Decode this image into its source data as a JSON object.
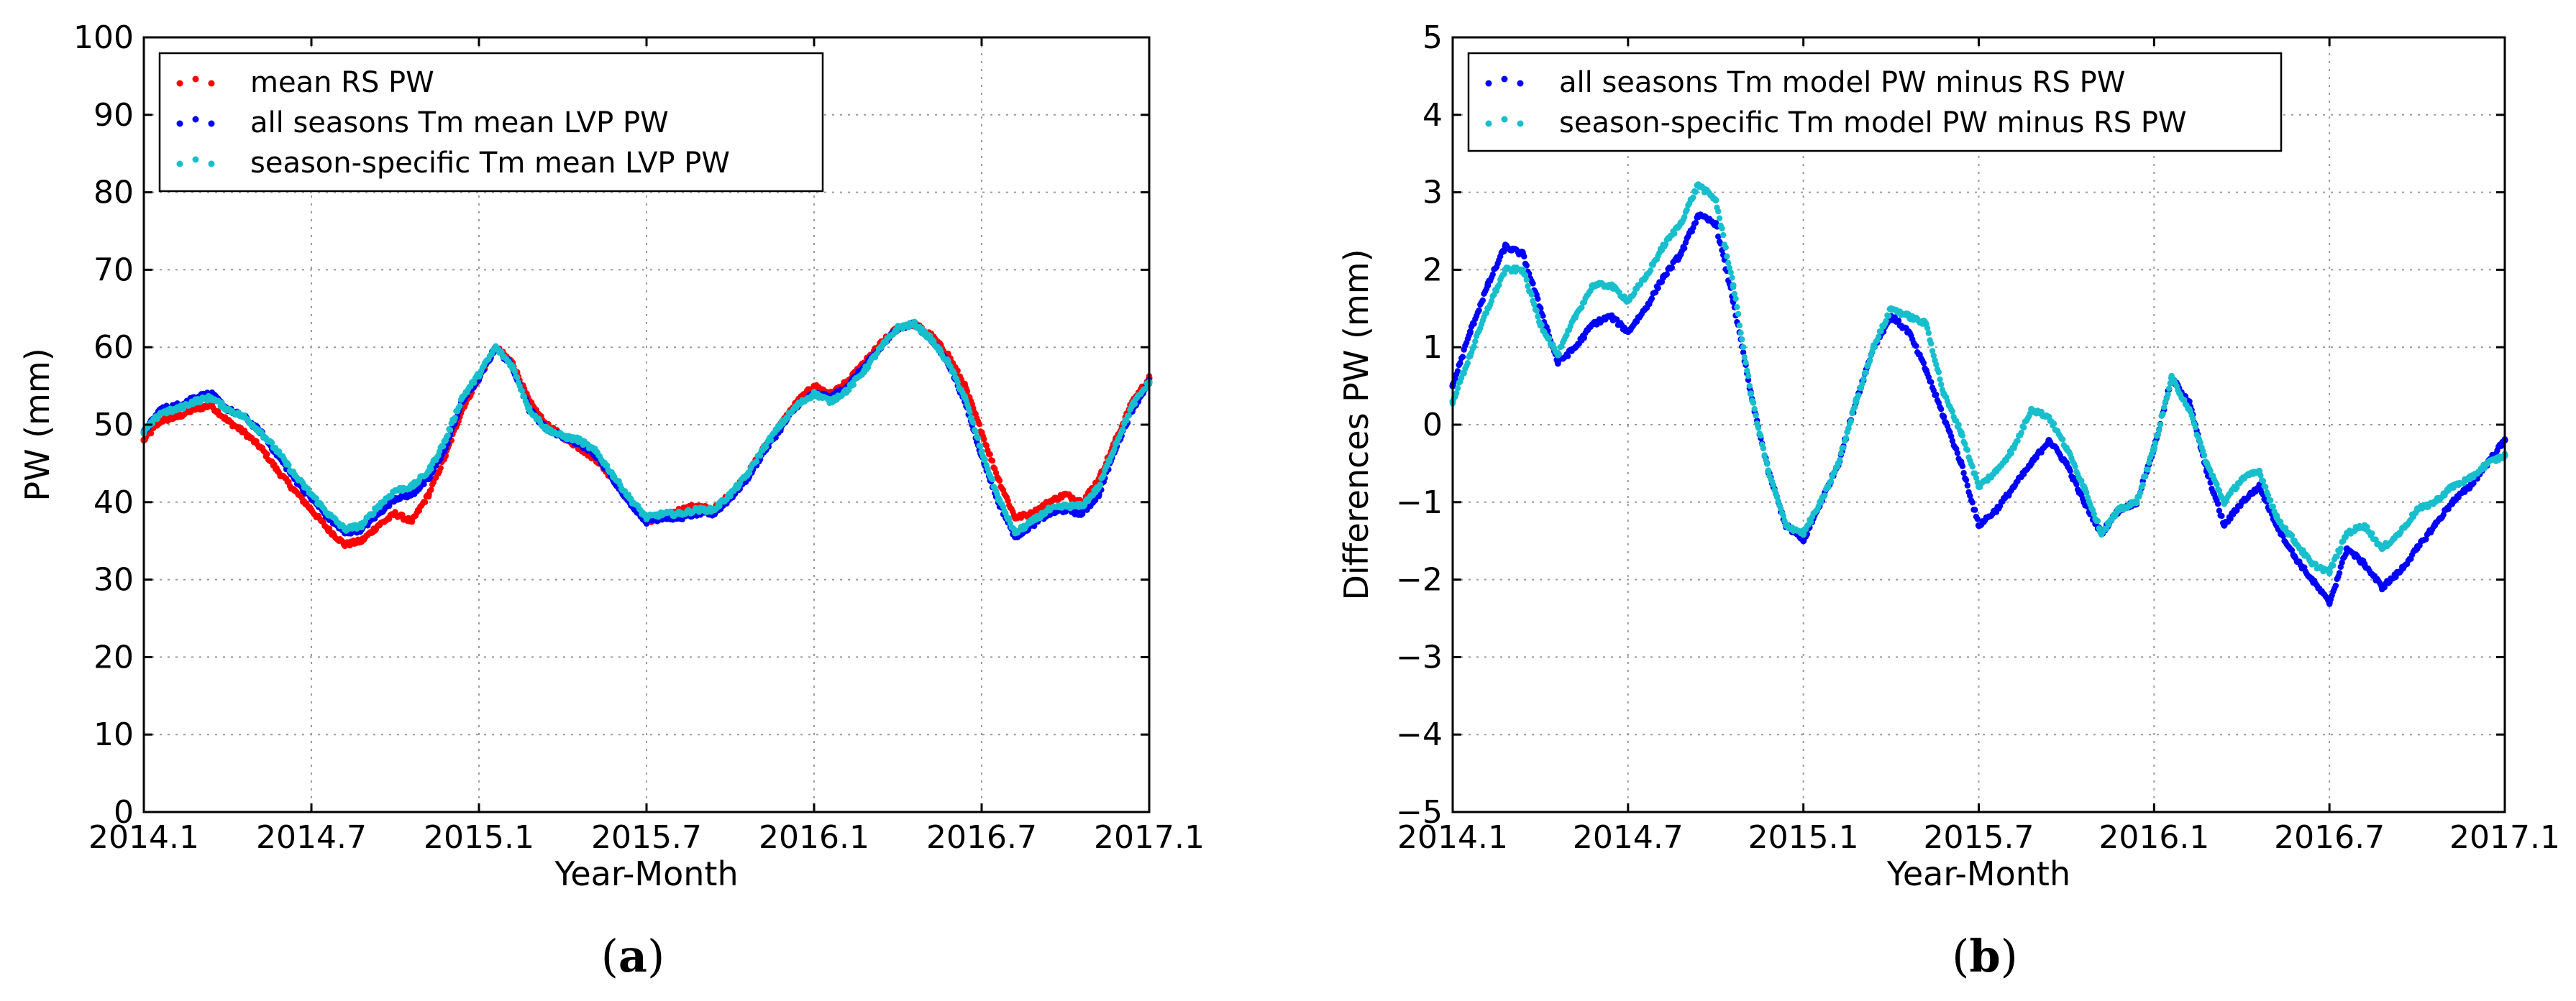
{
  "chart_data": [
    {
      "type": "line",
      "title": "",
      "caption_letter": "a",
      "xlabel": "Year-Month",
      "ylabel": "PW (mm)",
      "xlim": [
        2014.0,
        2017.0
      ],
      "ylim": [
        0,
        100
      ],
      "x_ticks": [
        2014.0,
        2014.5,
        2015.0,
        2015.5,
        2016.0,
        2016.5,
        2017.0
      ],
      "x_tick_labels": [
        "2014.1",
        "2014.7",
        "2015.1",
        "2015.7",
        "2016.1",
        "2016.7",
        "2017.1"
      ],
      "y_ticks": [
        0,
        10,
        20,
        30,
        40,
        50,
        60,
        70,
        80,
        90,
        100
      ],
      "y_tick_labels": [
        "0",
        "10",
        "20",
        "30",
        "40",
        "50",
        "60",
        "70",
        "80",
        "90",
        "100"
      ],
      "grid": true,
      "legend_position": "top-left",
      "series": [
        {
          "name": "mean RS PW",
          "color": "#ff0000",
          "x": [
            2014.0,
            2014.05,
            2014.1,
            2014.15,
            2014.2,
            2014.25,
            2014.3,
            2014.35,
            2014.4,
            2014.45,
            2014.5,
            2014.55,
            2014.6,
            2014.65,
            2014.7,
            2014.75,
            2014.8,
            2014.85,
            2014.9,
            2014.95,
            2015.0,
            2015.05,
            2015.1,
            2015.15,
            2015.2,
            2015.25,
            2015.3,
            2015.35,
            2015.4,
            2015.45,
            2015.5,
            2015.55,
            2015.6,
            2015.65,
            2015.7,
            2015.75,
            2015.8,
            2015.85,
            2015.9,
            2015.95,
            2016.0,
            2016.05,
            2016.1,
            2016.15,
            2016.2,
            2016.25,
            2016.3,
            2016.35,
            2016.4,
            2016.45,
            2016.5,
            2016.55,
            2016.6,
            2016.65,
            2016.7,
            2016.75,
            2016.8,
            2016.85,
            2016.9,
            2016.95,
            2017.0
          ],
          "y": [
            48,
            50.5,
            51,
            52,
            52.5,
            50.5,
            49,
            47,
            44,
            41.5,
            39,
            36.5,
            34.5,
            35,
            37,
            38.5,
            37.5,
            41,
            46,
            52,
            56,
            60,
            58,
            53,
            50,
            48.5,
            47,
            45.5,
            43,
            40,
            37.5,
            38,
            39,
            39.5,
            39,
            41,
            43.5,
            47,
            50,
            53,
            55,
            54,
            55.5,
            58,
            60.5,
            62.5,
            63,
            61.5,
            59,
            55,
            49,
            43,
            38,
            38.5,
            40,
            41,
            40,
            43,
            48,
            53,
            56
          ]
        },
        {
          "name": "all seasons Tm mean LVP PW",
          "color": "#0000ff",
          "x": [
            2014.0,
            2014.05,
            2014.1,
            2014.15,
            2014.2,
            2014.25,
            2014.3,
            2014.35,
            2014.4,
            2014.45,
            2014.5,
            2014.55,
            2014.6,
            2014.65,
            2014.7,
            2014.75,
            2014.8,
            2014.85,
            2014.9,
            2014.95,
            2015.0,
            2015.05,
            2015.1,
            2015.15,
            2015.2,
            2015.25,
            2015.3,
            2015.35,
            2015.4,
            2015.45,
            2015.5,
            2015.55,
            2015.6,
            2015.65,
            2015.7,
            2015.75,
            2015.8,
            2015.85,
            2015.9,
            2015.95,
            2016.0,
            2016.05,
            2016.1,
            2016.15,
            2016.2,
            2016.25,
            2016.3,
            2016.35,
            2016.4,
            2016.45,
            2016.5,
            2016.55,
            2016.6,
            2016.65,
            2016.7,
            2016.75,
            2016.8,
            2016.85,
            2016.9,
            2016.95,
            2017.0
          ],
          "y": [
            49,
            52,
            52.5,
            53.5,
            54,
            52,
            51,
            49,
            46,
            43,
            40.5,
            38,
            36,
            36.5,
            38.5,
            40.5,
            41,
            43,
            47,
            53,
            56,
            60,
            57.5,
            52,
            49.5,
            48.5,
            47.5,
            46,
            43,
            40,
            37.5,
            38,
            38,
            38.5,
            38.5,
            40.5,
            43,
            46.5,
            49.5,
            52.5,
            54,
            53.5,
            55,
            57.5,
            60,
            62.5,
            63,
            61,
            58,
            53,
            46,
            40,
            35.5,
            37,
            38.5,
            39,
            38.5,
            41,
            47,
            52,
            55.5
          ]
        },
        {
          "name": "season-specific Tm mean LVP PW",
          "color": "#17bfcc",
          "x": [
            2014.0,
            2014.05,
            2014.1,
            2014.15,
            2014.2,
            2014.25,
            2014.3,
            2014.35,
            2014.4,
            2014.45,
            2014.5,
            2014.55,
            2014.6,
            2014.65,
            2014.7,
            2014.75,
            2014.8,
            2014.85,
            2014.9,
            2014.95,
            2015.0,
            2015.05,
            2015.1,
            2015.15,
            2015.2,
            2015.25,
            2015.3,
            2015.35,
            2015.4,
            2015.45,
            2015.5,
            2015.55,
            2015.6,
            2015.65,
            2015.7,
            2015.75,
            2015.8,
            2015.85,
            2015.9,
            2015.95,
            2016.0,
            2016.05,
            2016.1,
            2016.15,
            2016.2,
            2016.25,
            2016.3,
            2016.35,
            2016.4,
            2016.45,
            2016.5,
            2016.55,
            2016.6,
            2016.65,
            2016.7,
            2016.75,
            2016.8,
            2016.85,
            2016.9,
            2016.95,
            2017.0
          ],
          "y": [
            49,
            51.5,
            52,
            53,
            53.5,
            52,
            51,
            49,
            46.5,
            43.5,
            41,
            38.5,
            36.5,
            37,
            39.5,
            41.5,
            42,
            44,
            48,
            53.5,
            56.5,
            60,
            57.5,
            52,
            49.5,
            48.5,
            48,
            46.5,
            43.5,
            40.5,
            38,
            38.5,
            38.5,
            39,
            39,
            41,
            43.5,
            47,
            50,
            52.5,
            54,
            53,
            54.5,
            57,
            60,
            62.5,
            63,
            61,
            58,
            53.5,
            46.5,
            40.5,
            36,
            37.5,
            39,
            39.5,
            39.5,
            42,
            47.5,
            52.5,
            55.5
          ]
        }
      ]
    },
    {
      "type": "line",
      "title": "",
      "caption_letter": "b",
      "xlabel": "Year-Month",
      "ylabel": "Differences PW (mm)",
      "xlim": [
        2014.0,
        2017.0
      ],
      "ylim": [
        -5,
        5
      ],
      "x_ticks": [
        2014.0,
        2014.5,
        2015.0,
        2015.5,
        2016.0,
        2016.5,
        2017.0
      ],
      "x_tick_labels": [
        "2014.1",
        "2014.7",
        "2015.1",
        "2015.7",
        "2016.1",
        "2016.7",
        "2017.1"
      ],
      "y_ticks": [
        -5,
        -4,
        -3,
        -2,
        -1,
        0,
        1,
        2,
        3,
        4,
        5
      ],
      "y_tick_labels": [
        "−5",
        "−4",
        "−3",
        "−2",
        "−1",
        "0",
        "1",
        "2",
        "3",
        "4",
        "5"
      ],
      "grid": true,
      "legend_position": "top-left",
      "series": [
        {
          "name": "all seasons Tm model PW minus RS PW",
          "color": "#0000ff",
          "x": [
            2014.0,
            2014.05,
            2014.1,
            2014.15,
            2014.2,
            2014.25,
            2014.3,
            2014.35,
            2014.4,
            2014.45,
            2014.5,
            2014.55,
            2014.6,
            2014.65,
            2014.7,
            2014.75,
            2014.8,
            2014.85,
            2014.9,
            2014.95,
            2015.0,
            2015.05,
            2015.1,
            2015.15,
            2015.2,
            2015.25,
            2015.3,
            2015.35,
            2015.4,
            2015.45,
            2015.5,
            2015.55,
            2015.6,
            2015.65,
            2015.7,
            2015.75,
            2015.8,
            2015.85,
            2015.9,
            2015.95,
            2016.0,
            2016.05,
            2016.1,
            2016.15,
            2016.2,
            2016.25,
            2016.3,
            2016.35,
            2016.4,
            2016.45,
            2016.5,
            2016.55,
            2016.6,
            2016.65,
            2016.7,
            2016.75,
            2016.8,
            2016.85,
            2016.9,
            2016.95,
            2017.0
          ],
          "y": [
            0.5,
            1.2,
            1.8,
            2.3,
            2.2,
            1.5,
            0.8,
            1.0,
            1.3,
            1.4,
            1.2,
            1.5,
            1.9,
            2.2,
            2.7,
            2.6,
            1.6,
            0.4,
            -0.6,
            -1.3,
            -1.5,
            -1.0,
            -0.5,
            0.3,
            1.0,
            1.4,
            1.2,
            0.7,
            0.1,
            -0.5,
            -1.3,
            -1.1,
            -0.8,
            -0.5,
            -0.2,
            -0.5,
            -1.0,
            -1.4,
            -1.1,
            -1.0,
            -0.3,
            0.6,
            0.3,
            -0.6,
            -1.3,
            -1.0,
            -0.8,
            -1.3,
            -1.7,
            -2.0,
            -2.3,
            -1.6,
            -1.8,
            -2.1,
            -1.9,
            -1.6,
            -1.3,
            -1.0,
            -0.8,
            -0.5,
            -0.2
          ]
        },
        {
          "name": "season-specific Tm model PW minus RS PW",
          "color": "#17bfcc",
          "x": [
            2014.0,
            2014.05,
            2014.1,
            2014.15,
            2014.2,
            2014.25,
            2014.3,
            2014.35,
            2014.4,
            2014.45,
            2014.5,
            2014.55,
            2014.6,
            2014.65,
            2014.7,
            2014.75,
            2014.8,
            2014.85,
            2014.9,
            2014.95,
            2015.0,
            2015.05,
            2015.1,
            2015.15,
            2015.2,
            2015.25,
            2015.3,
            2015.35,
            2015.4,
            2015.45,
            2015.5,
            2015.55,
            2015.6,
            2015.65,
            2015.7,
            2015.75,
            2015.8,
            2015.85,
            2015.9,
            2015.95,
            2016.0,
            2016.05,
            2016.1,
            2016.15,
            2016.2,
            2016.25,
            2016.3,
            2016.35,
            2016.4,
            2016.45,
            2016.5,
            2016.55,
            2016.6,
            2016.65,
            2016.7,
            2016.75,
            2016.8,
            2016.85,
            2016.9,
            2016.95,
            2017.0
          ],
          "y": [
            0.3,
            0.9,
            1.5,
            2.0,
            2.0,
            1.3,
            0.9,
            1.4,
            1.8,
            1.8,
            1.6,
            1.9,
            2.3,
            2.6,
            3.1,
            2.9,
            1.8,
            0.4,
            -0.6,
            -1.3,
            -1.4,
            -1.0,
            -0.5,
            0.3,
            1.0,
            1.5,
            1.4,
            1.3,
            0.4,
            -0.1,
            -0.8,
            -0.6,
            -0.3,
            0.2,
            0.1,
            -0.3,
            -0.8,
            -1.4,
            -1.1,
            -1.0,
            -0.3,
            0.6,
            0.2,
            -0.5,
            -1.0,
            -0.7,
            -0.6,
            -1.2,
            -1.5,
            -1.8,
            -1.9,
            -1.4,
            -1.3,
            -1.6,
            -1.4,
            -1.1,
            -1.0,
            -0.8,
            -0.7,
            -0.5,
            -0.4
          ]
        }
      ]
    }
  ]
}
